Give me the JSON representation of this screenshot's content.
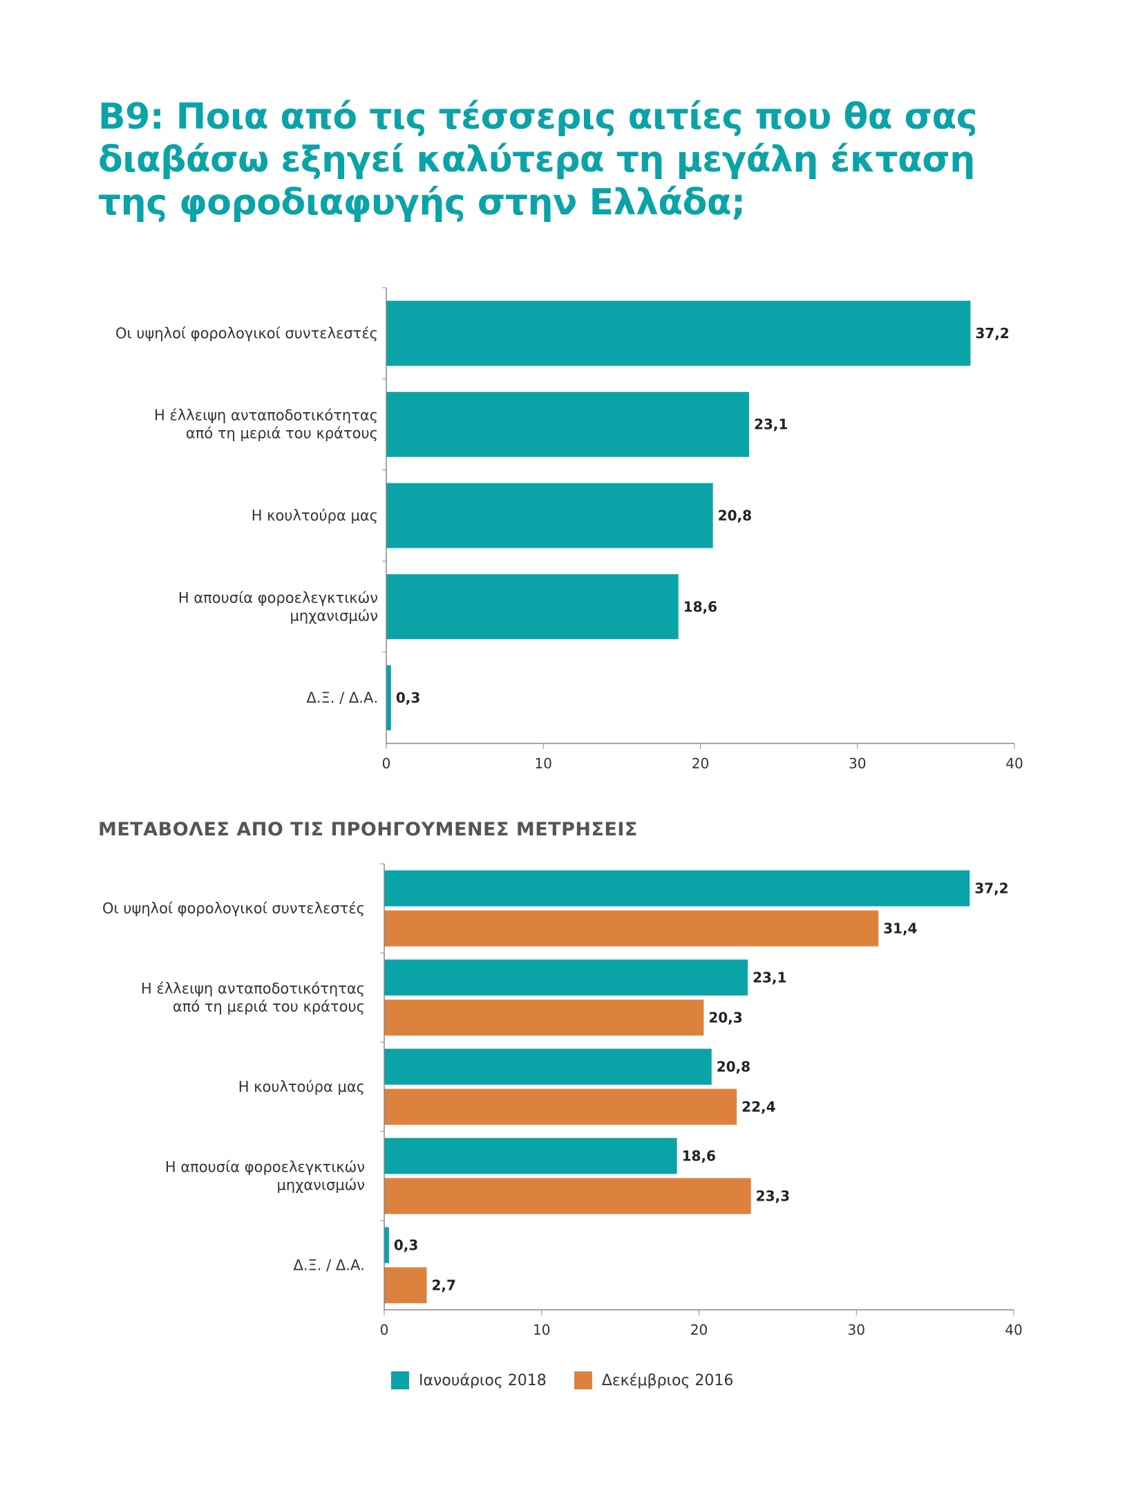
{
  "title_lines": [
    "Β9: Ποια από τις τέσσερις αιτίες που θα σας",
    "διαβάσω εξηγεί καλύτερα τη μεγάλη έκταση",
    "της φοροδιαφυγής στην Ελλάδα;"
  ],
  "subtitle": "ΜΕΤΑΒΟΛΕΣ ΑΠΟ ΤΙΣ ΠΡΟΗΓΟΥΜΕΝΕΣ ΜΕΤΡΗΣΕΙΣ",
  "colors": {
    "teal": "#0aa3a8",
    "orange": "#dc823c",
    "axis": "#888888"
  },
  "legend": [
    {
      "label": "Ιανουάριος 2018",
      "color": "#0aa3a8"
    },
    {
      "label": "Δεκέμβριος 2016",
      "color": "#dc823c"
    }
  ],
  "chart_data": [
    {
      "type": "bar",
      "orientation": "horizontal",
      "categories": [
        [
          "Οι υψηλοί φορολογικοί συντελεστές"
        ],
        [
          "Η έλλειψη ανταποδοτικότητας",
          "από τη μεριά του κράτους"
        ],
        [
          "Η κουλτούρα μας"
        ],
        [
          "Η απουσία φοροελεγκτικών",
          "μηχανισμών"
        ],
        [
          "Δ.Ξ. / Δ.Α."
        ]
      ],
      "series": [
        {
          "values": [
            37.2,
            23.1,
            20.8,
            18.6,
            0.3
          ],
          "labels": [
            "37,2",
            "23,1",
            "20,8",
            "18,6",
            "0,3"
          ],
          "color": "#0aa3a8"
        }
      ],
      "xlim": [
        0,
        40
      ],
      "xticks": [
        0,
        10,
        20,
        30,
        40
      ]
    },
    {
      "type": "bar",
      "orientation": "horizontal",
      "categories": [
        [
          "Οι υψηλοί φορολογικοί συντελεστές"
        ],
        [
          "Η έλλειψη ανταποδοτικότητας",
          "από τη μεριά του κράτους"
        ],
        [
          "Η κουλτούρα μας"
        ],
        [
          "Η απουσία φοροελεγκτικών",
          "μηχανισμών"
        ],
        [
          "Δ.Ξ. / Δ.Α."
        ]
      ],
      "series": [
        {
          "name": "Ιανουάριος 2018",
          "values": [
            37.2,
            23.1,
            20.8,
            18.6,
            0.3
          ],
          "labels": [
            "37,2",
            "23,1",
            "20,8",
            "18,6",
            "0,3"
          ],
          "color": "#0aa3a8"
        },
        {
          "name": "Δεκέμβριος 2016",
          "values": [
            31.4,
            20.3,
            22.4,
            23.3,
            2.7
          ],
          "labels": [
            "31,4",
            "20,3",
            "22,4",
            "23,3",
            "2,7"
          ],
          "color": "#dc823c"
        }
      ],
      "xlim": [
        0,
        40
      ],
      "xticks": [
        0,
        10,
        20,
        30,
        40
      ],
      "legend_position": "bottom"
    }
  ]
}
